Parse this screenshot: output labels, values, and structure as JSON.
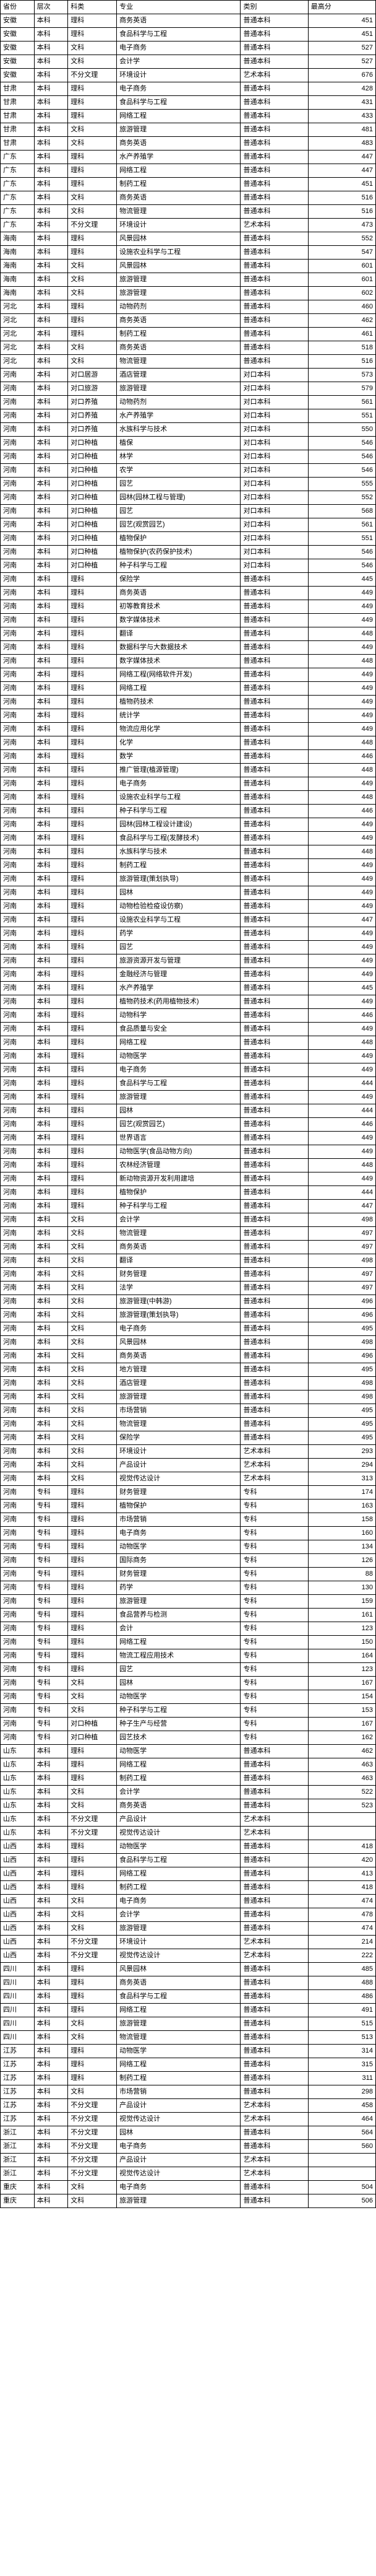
{
  "columns": [
    "省份",
    "层次",
    "科类",
    "专业",
    "类别",
    "最高分"
  ],
  "rows": [
    [
      "安徽",
      "本科",
      "理科",
      "商务英语",
      "普通本科",
      "451"
    ],
    [
      "安徽",
      "本科",
      "理科",
      "食品科学与工程",
      "普通本科",
      "451"
    ],
    [
      "安徽",
      "本科",
      "文科",
      "电子商务",
      "普通本科",
      "527"
    ],
    [
      "安徽",
      "本科",
      "文科",
      "会计学",
      "普通本科",
      "527"
    ],
    [
      "安徽",
      "本科",
      "不分文理",
      "环境设计",
      "艺术本科",
      "676"
    ],
    [
      "甘肃",
      "本科",
      "理科",
      "电子商务",
      "普通本科",
      "428"
    ],
    [
      "甘肃",
      "本科",
      "理科",
      "食品科学与工程",
      "普通本科",
      "431"
    ],
    [
      "甘肃",
      "本科",
      "理科",
      "网络工程",
      "普通本科",
      "433"
    ],
    [
      "甘肃",
      "本科",
      "文科",
      "旅游管理",
      "普通本科",
      "481"
    ],
    [
      "甘肃",
      "本科",
      "文科",
      "商务英语",
      "普通本科",
      "483"
    ],
    [
      "广东",
      "本科",
      "理科",
      "水产养殖学",
      "普通本科",
      "447"
    ],
    [
      "广东",
      "本科",
      "理科",
      "网络工程",
      "普通本科",
      "447"
    ],
    [
      "广东",
      "本科",
      "理科",
      "制药工程",
      "普通本科",
      "451"
    ],
    [
      "广东",
      "本科",
      "文科",
      "商务英语",
      "普通本科",
      "516"
    ],
    [
      "广东",
      "本科",
      "文科",
      "物流管理",
      "普通本科",
      "516"
    ],
    [
      "广东",
      "本科",
      "不分文理",
      "环境设计",
      "艺术本科",
      "473"
    ],
    [
      "海南",
      "本科",
      "理科",
      "风景园林",
      "普通本科",
      "552"
    ],
    [
      "海南",
      "本科",
      "理科",
      "设施农业科学与工程",
      "普通本科",
      "547"
    ],
    [
      "海南",
      "本科",
      "文科",
      "风景园林",
      "普通本科",
      "601"
    ],
    [
      "海南",
      "本科",
      "文科",
      "旅游管理",
      "普通本科",
      "601"
    ],
    [
      "海南",
      "本科",
      "文科",
      "旅游管理",
      "普通本科",
      "602"
    ],
    [
      "河北",
      "本科",
      "理科",
      "动物药剂",
      "普通本科",
      "460"
    ],
    [
      "河北",
      "本科",
      "理科",
      "商务英语",
      "普通本科",
      "462"
    ],
    [
      "河北",
      "本科",
      "理科",
      "制药工程",
      "普通本科",
      "461"
    ],
    [
      "河北",
      "本科",
      "文科",
      "商务英语",
      "普通本科",
      "518"
    ],
    [
      "河北",
      "本科",
      "文科",
      "物流管理",
      "普通本科",
      "516"
    ],
    [
      "河南",
      "本科",
      "对口居游",
      "酒店管理",
      "对口本科",
      "573"
    ],
    [
      "河南",
      "本科",
      "对口旅游",
      "旅游管理",
      "对口本科",
      "579"
    ],
    [
      "河南",
      "本科",
      "对口养殖",
      "动物药剂",
      "对口本科",
      "561"
    ],
    [
      "河南",
      "本科",
      "对口养殖",
      "水产养殖学",
      "对口本科",
      "551"
    ],
    [
      "河南",
      "本科",
      "对口养殖",
      "水族科学与技术",
      "对口本科",
      "550"
    ],
    [
      "河南",
      "本科",
      "对口种植",
      "植保",
      "对口本科",
      "546"
    ],
    [
      "河南",
      "本科",
      "对口种植",
      "林学",
      "对口本科",
      "546"
    ],
    [
      "河南",
      "本科",
      "对口种植",
      "农学",
      "对口本科",
      "546"
    ],
    [
      "河南",
      "本科",
      "对口种植",
      "园艺",
      "对口本科",
      "555"
    ],
    [
      "河南",
      "本科",
      "对口种植",
      "园林(园林工程与管理)",
      "对口本科",
      "552"
    ],
    [
      "河南",
      "本科",
      "对口种植",
      "园艺",
      "对口本科",
      "568"
    ],
    [
      "河南",
      "本科",
      "对口种植",
      "园艺(观赏园艺)",
      "对口本科",
      "561"
    ],
    [
      "河南",
      "本科",
      "对口种植",
      "植物保护",
      "对口本科",
      "551"
    ],
    [
      "河南",
      "本科",
      "对口种植",
      "植物保护(农药保护技术)",
      "对口本科",
      "546"
    ],
    [
      "河南",
      "本科",
      "对口种植",
      "种子科学与工程",
      "对口本科",
      "546"
    ],
    [
      "河南",
      "本科",
      "理科",
      "保险学",
      "普通本科",
      "445"
    ],
    [
      "河南",
      "本科",
      "理科",
      "商务英语",
      "普通本科",
      "449"
    ],
    [
      "河南",
      "本科",
      "理科",
      "初等教育技术",
      "普通本科",
      "449"
    ],
    [
      "河南",
      "本科",
      "理科",
      "数字媒体技术",
      "普通本科",
      "449"
    ],
    [
      "河南",
      "本科",
      "理科",
      "翻译",
      "普通本科",
      "448"
    ],
    [
      "河南",
      "本科",
      "理科",
      "数据科学与大数据技术",
      "普通本科",
      "449"
    ],
    [
      "河南",
      "本科",
      "理科",
      "数字媒体技术",
      "普通本科",
      "448"
    ],
    [
      "河南",
      "本科",
      "理科",
      "网络工程(网络软件开发)",
      "普通本科",
      "449"
    ],
    [
      "河南",
      "本科",
      "理科",
      "网络工程",
      "普通本科",
      "449"
    ],
    [
      "河南",
      "本科",
      "理科",
      "植物药技术",
      "普通本科",
      "449"
    ],
    [
      "河南",
      "本科",
      "理科",
      "统计学",
      "普通本科",
      "449"
    ],
    [
      "河南",
      "本科",
      "理科",
      "物流应用化学",
      "普通本科",
      "449"
    ],
    [
      "河南",
      "本科",
      "理科",
      "化学",
      "普通本科",
      "448"
    ],
    [
      "河南",
      "本科",
      "理科",
      "数学",
      "普通本科",
      "446"
    ],
    [
      "河南",
      "本科",
      "理科",
      "推广管理(植源管理)",
      "普通本科",
      "448"
    ],
    [
      "河南",
      "本科",
      "理科",
      "电子商务",
      "普通本科",
      "449"
    ],
    [
      "河南",
      "本科",
      "理科",
      "设施农业科学与工程",
      "普通本科",
      "448"
    ],
    [
      "河南",
      "本科",
      "理科",
      "种子科学与工程",
      "普通本科",
      "446"
    ],
    [
      "河南",
      "本科",
      "理科",
      "园林(园林工程设计建设)",
      "普通本科",
      "449"
    ],
    [
      "河南",
      "本科",
      "理科",
      "食品科学与工程(发酵技术)",
      "普通本科",
      "449"
    ],
    [
      "河南",
      "本科",
      "理科",
      "水族科学与技术",
      "普通本科",
      "448"
    ],
    [
      "河南",
      "本科",
      "理科",
      "制药工程",
      "普通本科",
      "449"
    ],
    [
      "河南",
      "本科",
      "理科",
      "旅游管理(策划执导)",
      "普通本科",
      "449"
    ],
    [
      "河南",
      "本科",
      "理科",
      "园林",
      "普通本科",
      "449"
    ],
    [
      "河南",
      "本科",
      "理科",
      "动物检验检疫设仿察)",
      "普通本科",
      "449"
    ],
    [
      "河南",
      "本科",
      "理科",
      "设施农业科学与工程",
      "普通本科",
      "447"
    ],
    [
      "河南",
      "本科",
      "理科",
      "药学",
      "普通本科",
      "449"
    ],
    [
      "河南",
      "本科",
      "理科",
      "园艺",
      "普通本科",
      "449"
    ],
    [
      "河南",
      "本科",
      "理科",
      "旅游资源开发与管理",
      "普通本科",
      "449"
    ],
    [
      "河南",
      "本科",
      "理科",
      "金融经济与管理",
      "普通本科",
      "449"
    ],
    [
      "河南",
      "本科",
      "理科",
      "水产养殖学",
      "普通本科",
      "445"
    ],
    [
      "河南",
      "本科",
      "理科",
      "植物药技术(药用植物技术)",
      "普通本科",
      "449"
    ],
    [
      "河南",
      "本科",
      "理科",
      "动物科学",
      "普通本科",
      "446"
    ],
    [
      "河南",
      "本科",
      "理科",
      "食品质量与安全",
      "普通本科",
      "449"
    ],
    [
      "河南",
      "本科",
      "理科",
      "网络工程",
      "普通本科",
      "448"
    ],
    [
      "河南",
      "本科",
      "理科",
      "动物医学",
      "普通本科",
      "449"
    ],
    [
      "河南",
      "本科",
      "理科",
      "电子商务",
      "普通本科",
      "449"
    ],
    [
      "河南",
      "本科",
      "理科",
      "食品科学与工程",
      "普通本科",
      "444"
    ],
    [
      "河南",
      "本科",
      "理科",
      "旅游管理",
      "普通本科",
      "449"
    ],
    [
      "河南",
      "本科",
      "理科",
      "园林",
      "普通本科",
      "444"
    ],
    [
      "河南",
      "本科",
      "理科",
      "园艺(观赏园艺)",
      "普通本科",
      "446"
    ],
    [
      "河南",
      "本科",
      "理科",
      "世界语言",
      "普通本科",
      "449"
    ],
    [
      "河南",
      "本科",
      "理科",
      "动物医学(食品动物方向)",
      "普通本科",
      "449"
    ],
    [
      "河南",
      "本科",
      "理科",
      "农林经济管理",
      "普通本科",
      "448"
    ],
    [
      "河南",
      "本科",
      "理科",
      "新动物资源开发利用建培",
      "普通本科",
      "449"
    ],
    [
      "河南",
      "本科",
      "理科",
      "植物保护",
      "普通本科",
      "444"
    ],
    [
      "河南",
      "本科",
      "理科",
      "种子科学与工程",
      "普通本科",
      "447"
    ],
    [
      "河南",
      "本科",
      "文科",
      "会计学",
      "普通本科",
      "498"
    ],
    [
      "河南",
      "本科",
      "文科",
      "物流管理",
      "普通本科",
      "497"
    ],
    [
      "河南",
      "本科",
      "文科",
      "商务英语",
      "普通本科",
      "497"
    ],
    [
      "河南",
      "本科",
      "文科",
      "翻译",
      "普通本科",
      "498"
    ],
    [
      "河南",
      "本科",
      "文科",
      "财务管理",
      "普通本科",
      "497"
    ],
    [
      "河南",
      "本科",
      "文科",
      "法学",
      "普通本科",
      "497"
    ],
    [
      "河南",
      "本科",
      "文科",
      "旅游管理(中韩游)",
      "普通本科",
      "496"
    ],
    [
      "河南",
      "本科",
      "文科",
      "旅游管理(策划执导)",
      "普通本科",
      "496"
    ],
    [
      "河南",
      "本科",
      "文科",
      "电子商务",
      "普通本科",
      "495"
    ],
    [
      "河南",
      "本科",
      "文科",
      "风景园林",
      "普通本科",
      "498"
    ],
    [
      "河南",
      "本科",
      "文科",
      "商务英语",
      "普通本科",
      "496"
    ],
    [
      "河南",
      "本科",
      "文科",
      "地方管理",
      "普通本科",
      "495"
    ],
    [
      "河南",
      "本科",
      "文科",
      "酒店管理",
      "普通本科",
      "498"
    ],
    [
      "河南",
      "本科",
      "文科",
      "旅游管理",
      "普通本科",
      "498"
    ],
    [
      "河南",
      "本科",
      "文科",
      "市场营销",
      "普通本科",
      "495"
    ],
    [
      "河南",
      "本科",
      "文科",
      "物流管理",
      "普通本科",
      "495"
    ],
    [
      "河南",
      "本科",
      "文科",
      "保险学",
      "普通本科",
      "495"
    ],
    [
      "河南",
      "本科",
      "文科",
      "环境设计",
      "艺术本科",
      "293"
    ],
    [
      "河南",
      "本科",
      "文科",
      "产品设计",
      "艺术本科",
      "294"
    ],
    [
      "河南",
      "本科",
      "文科",
      "视觉传达设计",
      "艺术本科",
      "313"
    ],
    [
      "河南",
      "专科",
      "理科",
      "财务管理",
      "专科",
      "174"
    ],
    [
      "河南",
      "专科",
      "理科",
      "植物保护",
      "专科",
      "163"
    ],
    [
      "河南",
      "专科",
      "理科",
      "市场营销",
      "专科",
      "158"
    ],
    [
      "河南",
      "专科",
      "理科",
      "电子商务",
      "专科",
      "160"
    ],
    [
      "河南",
      "专科",
      "理科",
      "动物医学",
      "专科",
      "134"
    ],
    [
      "河南",
      "专科",
      "理科",
      "国际商务",
      "专科",
      "126"
    ],
    [
      "河南",
      "专科",
      "理科",
      "财务管理",
      "专科",
      "88"
    ],
    [
      "河南",
      "专科",
      "理科",
      "药学",
      "专科",
      "130"
    ],
    [
      "河南",
      "专科",
      "理科",
      "旅游管理",
      "专科",
      "159"
    ],
    [
      "河南",
      "专科",
      "理科",
      "食品营养与检测",
      "专科",
      "161"
    ],
    [
      "河南",
      "专科",
      "理科",
      "会计",
      "专科",
      "123"
    ],
    [
      "河南",
      "专科",
      "理科",
      "网络工程",
      "专科",
      "150"
    ],
    [
      "河南",
      "专科",
      "理科",
      "物流工程应用技术",
      "专科",
      "164"
    ],
    [
      "河南",
      "专科",
      "理科",
      "园艺",
      "专科",
      "123"
    ],
    [
      "河南",
      "专科",
      "文科",
      "园林",
      "专科",
      "167"
    ],
    [
      "河南",
      "专科",
      "文科",
      "动物医学",
      "专科",
      "154"
    ],
    [
      "河南",
      "专科",
      "文科",
      "种子科学与工程",
      "专科",
      "153"
    ],
    [
      "河南",
      "专科",
      "对口种植",
      "种子生产与经营",
      "专科",
      "167"
    ],
    [
      "河南",
      "专科",
      "对口种植",
      "园艺技术",
      "专科",
      "162"
    ],
    [
      "山东",
      "本科",
      "理科",
      "动物医学",
      "普通本科",
      "462"
    ],
    [
      "山东",
      "本科",
      "理科",
      "网络工程",
      "普通本科",
      "463"
    ],
    [
      "山东",
      "本科",
      "理科",
      "制药工程",
      "普通本科",
      "463"
    ],
    [
      "山东",
      "本科",
      "文科",
      "会计学",
      "普通本科",
      "522"
    ],
    [
      "山东",
      "本科",
      "文科",
      "商务英语",
      "普通本科",
      "523"
    ],
    [
      "山东",
      "本科",
      "不分文理",
      "产品设计",
      "艺术本科",
      ""
    ],
    [
      "山东",
      "本科",
      "不分文理",
      "视觉传达设计",
      "艺术本科",
      ""
    ],
    [
      "山西",
      "本科",
      "理科",
      "动物医学",
      "普通本科",
      "418"
    ],
    [
      "山西",
      "本科",
      "理科",
      "食品科学与工程",
      "普通本科",
      "420"
    ],
    [
      "山西",
      "本科",
      "理科",
      "网络工程",
      "普通本科",
      "413"
    ],
    [
      "山西",
      "本科",
      "理科",
      "制药工程",
      "普通本科",
      "418"
    ],
    [
      "山西",
      "本科",
      "文科",
      "电子商务",
      "普通本科",
      "474"
    ],
    [
      "山西",
      "本科",
      "文科",
      "会计学",
      "普通本科",
      "478"
    ],
    [
      "山西",
      "本科",
      "文科",
      "旅游管理",
      "普通本科",
      "474"
    ],
    [
      "山西",
      "本科",
      "不分文理",
      "环境设计",
      "艺术本科",
      "214"
    ],
    [
      "山西",
      "本科",
      "不分文理",
      "视觉传达设计",
      "艺术本科",
      "222"
    ],
    [
      "四川",
      "本科",
      "理科",
      "风景园林",
      "普通本科",
      "485"
    ],
    [
      "四川",
      "本科",
      "理科",
      "商务英语",
      "普通本科",
      "488"
    ],
    [
      "四川",
      "本科",
      "理科",
      "食品科学与工程",
      "普通本科",
      "486"
    ],
    [
      "四川",
      "本科",
      "理科",
      "网络工程",
      "普通本科",
      "491"
    ],
    [
      "四川",
      "本科",
      "文科",
      "旅游管理",
      "普通本科",
      "515"
    ],
    [
      "四川",
      "本科",
      "文科",
      "物流管理",
      "普通本科",
      "513"
    ],
    [
      "江苏",
      "本科",
      "理科",
      "动物医学",
      "普通本科",
      "314"
    ],
    [
      "江苏",
      "本科",
      "理科",
      "网络工程",
      "普通本科",
      "315"
    ],
    [
      "江苏",
      "本科",
      "理科",
      "制药工程",
      "普通本科",
      "311"
    ],
    [
      "江苏",
      "本科",
      "文科",
      "市场营销",
      "普通本科",
      "298"
    ],
    [
      "江苏",
      "本科",
      "不分文理",
      "产品设计",
      "艺术本科",
      "458"
    ],
    [
      "江苏",
      "本科",
      "不分文理",
      "视觉传达设计",
      "艺术本科",
      "464"
    ],
    [
      "浙江",
      "本科",
      "不分文理",
      "园林",
      "普通本科",
      "564"
    ],
    [
      "浙江",
      "本科",
      "不分文理",
      "电子商务",
      "普通本科",
      "560"
    ],
    [
      "浙江",
      "本科",
      "不分文理",
      "产品设计",
      "艺术本科",
      ""
    ],
    [
      "浙江",
      "本科",
      "不分文理",
      "视觉传达设计",
      "艺术本科",
      ""
    ],
    [
      "重庆",
      "本科",
      "文科",
      "电子商务",
      "普通本科",
      "504"
    ],
    [
      "重庆",
      "本科",
      "文科",
      "旅游管理",
      "普通本科",
      "506"
    ]
  ]
}
